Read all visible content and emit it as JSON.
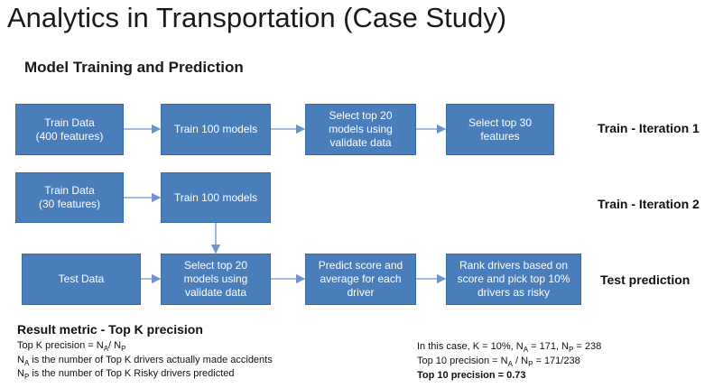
{
  "title": "Analytics in Transportation (Case Study)",
  "subtitle": "Model Training and Prediction",
  "boxes": {
    "train_data_400": "Train Data\n(400 features)",
    "train_100_a": "Train 100 models",
    "select_top20_a": "Select top 20\nmodels using\nvalidate data",
    "select_top30": "Select top 30\nfeatures",
    "train_data_30": "Train Data\n(30 features)",
    "train_100_b": "Train 100 models",
    "test_data": "Test Data",
    "select_top20_b": "Select top 20\nmodels using\nvalidate data",
    "predict_score": "Predict score  and\naverage for each\ndriver",
    "rank_drivers": "Rank drivers based on\nscore and pick top 10%\ndrivers as risky"
  },
  "row_labels": {
    "iter1": "Train - Iteration 1",
    "iter2": "Train - Iteration 2",
    "test": "Test prediction"
  },
  "result": {
    "heading": "Result metric - Top K precision",
    "formula_prefix": "Top K precision = N",
    "formula_sub_a": "A",
    "formula_sep": "/ N",
    "formula_sub_p": "P",
    "na_sub": "A",
    "na_text": " is the number of Top K drivers actually made accidents",
    "np_sub": "P",
    "np_text": " is the number of Top K Risky drivers predicted"
  },
  "case": {
    "line1_a": "In this case, K = 10%,  N",
    "line1_sub_a": "A",
    "line1_b": " = 171, N",
    "line1_sub_p": "P",
    "line1_c": " = 238",
    "line2_a": "Top 10 precision = N",
    "line2_sub_a": "A",
    "line2_b": " / N",
    "line2_sub_p": "P",
    "line2_c": " = 171/238",
    "line3": "Top 10 precision = 0.73"
  }
}
